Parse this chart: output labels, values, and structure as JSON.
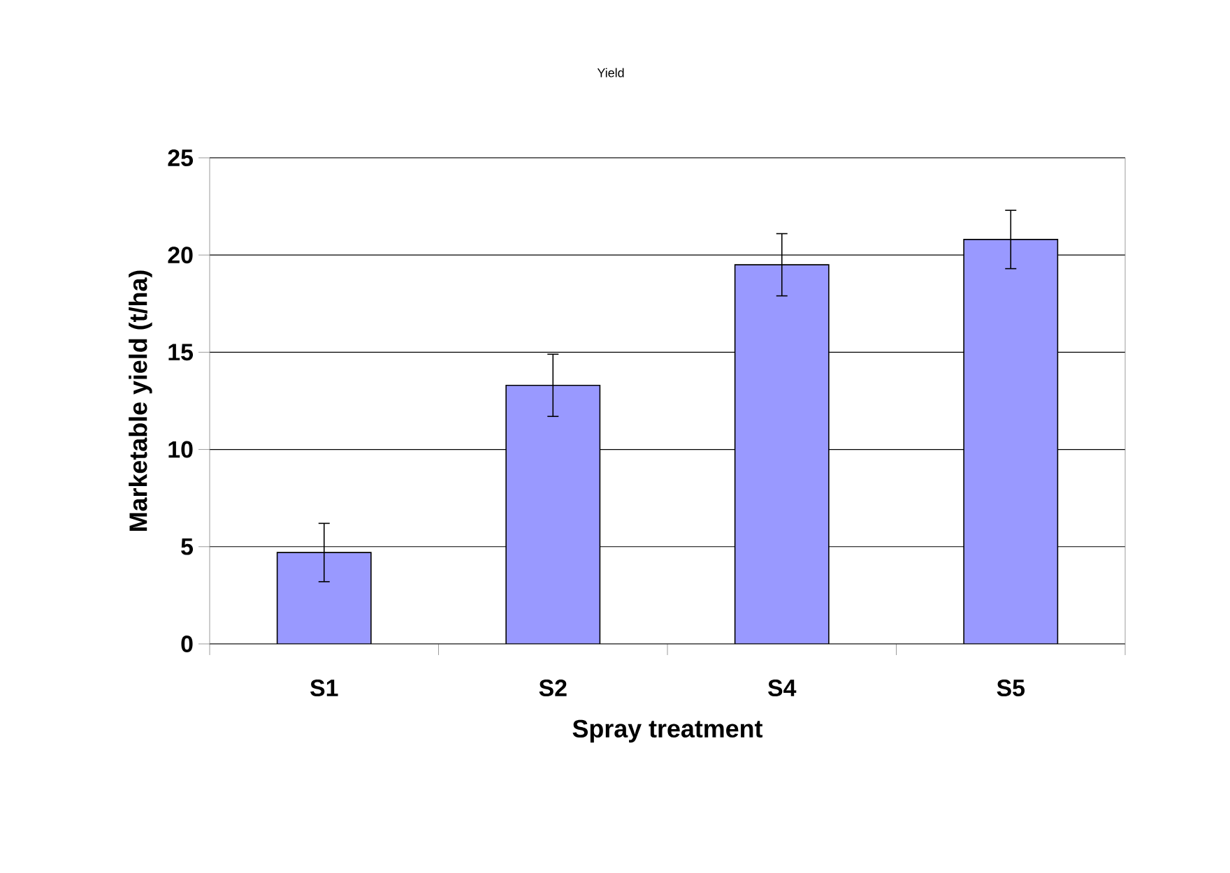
{
  "chart_data": {
    "type": "bar",
    "title": "Yield",
    "xlabel": "Spray treatment",
    "ylabel": "Marketable yield (t/ha)",
    "categories": [
      "S1",
      "S2",
      "S4",
      "S5"
    ],
    "values": [
      4.7,
      13.3,
      19.5,
      20.8
    ],
    "errors": [
      1.5,
      1.6,
      1.6,
      1.5
    ],
    "color": "#9999ff",
    "ylim": [
      0,
      25
    ],
    "yticks": [
      0,
      5,
      10,
      15,
      20,
      25
    ],
    "grid": "y"
  }
}
